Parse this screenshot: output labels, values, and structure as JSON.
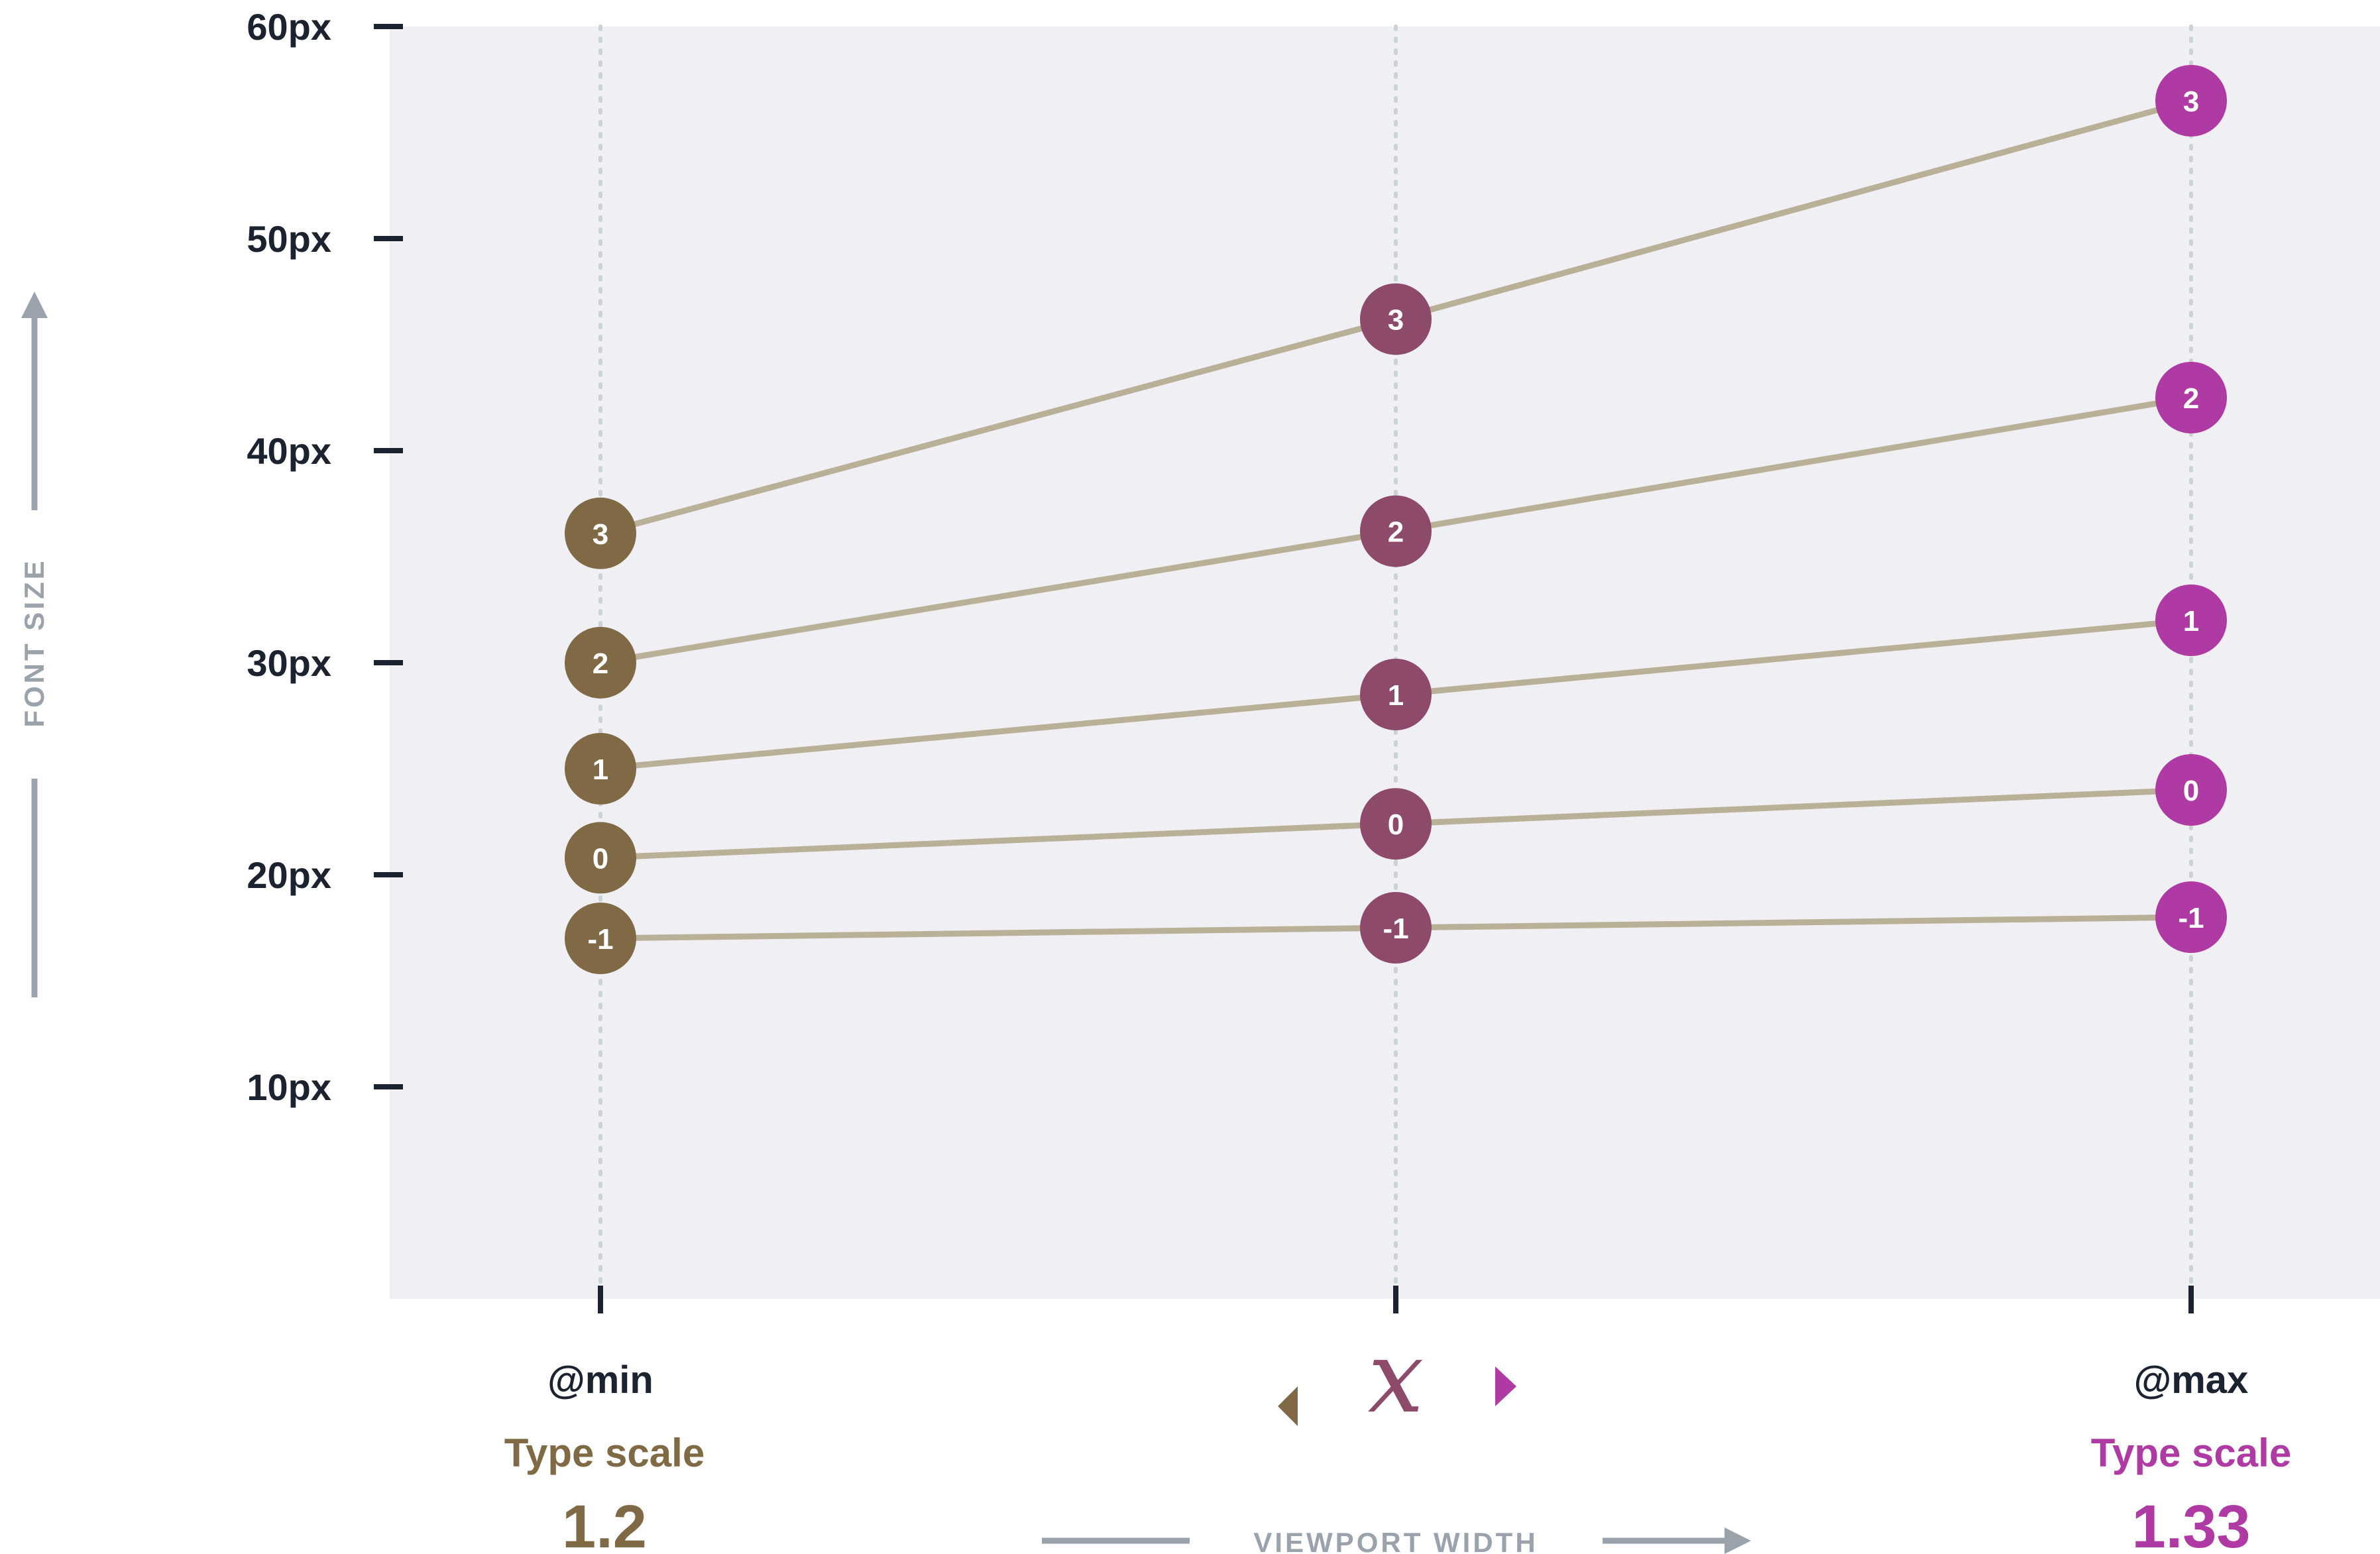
{
  "chart_data": {
    "type": "line",
    "ylabel": "FONT SIZE",
    "xlabel": "VIEWPORT WIDTH",
    "ylim": [
      0,
      60
    ],
    "yticks": [
      10,
      20,
      30,
      40,
      50,
      60
    ],
    "ytick_labels": [
      "10px",
      "20px",
      "30px",
      "40px",
      "50px",
      "60px"
    ],
    "x_categories": [
      "@min",
      "",
      "@max"
    ],
    "x_variable": "x",
    "grid": "vertical dotted at breakpoints",
    "min": {
      "label": "@min",
      "scale_title": "Type scale",
      "scale_value": "1.2",
      "color": "#7f6a45"
    },
    "mid": {
      "color": "#8e4a6a"
    },
    "max": {
      "label": "@max",
      "scale_title": "Type scale",
      "scale_value": "1.33",
      "color": "#b03aa3"
    },
    "line_color": "#b9b097",
    "plot_bg": "#f0f0f4",
    "axis_color": "#1c2330",
    "series": [
      {
        "step": "3",
        "values": [
          36.1,
          46.2,
          56.5
        ]
      },
      {
        "step": "2",
        "values": [
          30.0,
          36.2,
          42.5
        ]
      },
      {
        "step": "1",
        "values": [
          25.0,
          28.5,
          32.0
        ]
      },
      {
        "step": "0",
        "values": [
          20.8,
          22.4,
          24.0
        ]
      },
      {
        "step": "-1",
        "values": [
          17.0,
          17.5,
          18.0
        ]
      }
    ]
  }
}
